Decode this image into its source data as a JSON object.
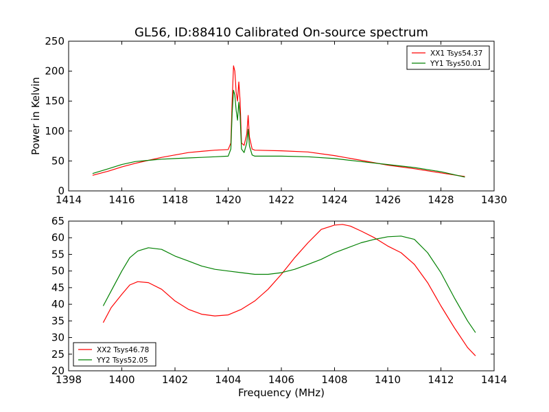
{
  "figure": {
    "title": "GL56, ID:88410 Calibrated On-source spectrum"
  },
  "chart_data": [
    {
      "type": "line",
      "ylabel": "Power in Kelvin",
      "xlabel": "",
      "xlim": [
        1414,
        1430
      ],
      "ylim": [
        0,
        250
      ],
      "xticks": [
        1414,
        1416,
        1418,
        1420,
        1422,
        1424,
        1426,
        1428,
        1430
      ],
      "yticks": [
        0,
        50,
        100,
        150,
        200,
        250
      ],
      "legend": "top-right",
      "grid": false,
      "series": [
        {
          "name": "XX1 Tsys54.37",
          "color": "#ff0000",
          "x": [
            1414.9,
            1415.5,
            1416,
            1416.5,
            1417,
            1417.5,
            1418,
            1418.5,
            1419,
            1419.5,
            1420,
            1420.1,
            1420.15,
            1420.2,
            1420.25,
            1420.3,
            1420.35,
            1420.4,
            1420.45,
            1420.5,
            1420.6,
            1420.7,
            1420.75,
            1420.8,
            1420.9,
            1421,
            1422,
            1423,
            1424,
            1425,
            1426,
            1427,
            1428,
            1428.9
          ],
          "y": [
            26,
            33,
            40,
            46,
            51,
            56,
            60,
            64,
            66,
            68,
            69,
            80,
            150,
            209,
            200,
            165,
            150,
            182,
            150,
            80,
            76,
            95,
            126,
            90,
            70,
            68,
            67,
            65,
            59,
            51,
            43,
            37,
            30,
            24
          ]
        },
        {
          "name": "YY1 Tsys50.01",
          "color": "#008000",
          "x": [
            1414.9,
            1415.5,
            1416,
            1416.5,
            1417,
            1417.5,
            1418,
            1418.5,
            1419,
            1419.5,
            1420,
            1420.1,
            1420.15,
            1420.2,
            1420.25,
            1420.3,
            1420.35,
            1420.4,
            1420.45,
            1420.5,
            1420.6,
            1420.7,
            1420.75,
            1420.8,
            1420.9,
            1421,
            1422,
            1423,
            1424,
            1425,
            1426,
            1427,
            1428,
            1428.9
          ],
          "y": [
            29,
            37,
            44,
            49,
            51,
            53,
            54,
            55,
            56,
            57,
            58,
            70,
            130,
            168,
            160,
            135,
            118,
            148,
            125,
            70,
            64,
            80,
            103,
            75,
            60,
            58,
            58,
            57,
            54,
            49,
            44,
            39,
            32,
            23
          ]
        }
      ]
    },
    {
      "type": "line",
      "ylabel": "",
      "xlabel": "Frequency (MHz)",
      "xlim": [
        1398,
        1414
      ],
      "ylim": [
        20,
        65
      ],
      "xticks": [
        1398,
        1400,
        1402,
        1404,
        1406,
        1408,
        1410,
        1412,
        1414
      ],
      "yticks": [
        20,
        25,
        30,
        35,
        40,
        45,
        50,
        55,
        60,
        65
      ],
      "legend": "bottom-left",
      "grid": false,
      "series": [
        {
          "name": "XX2 Tsys46.78",
          "color": "#ff0000",
          "x": [
            1399.3,
            1399.6,
            1400,
            1400.3,
            1400.6,
            1401,
            1401.5,
            1402,
            1402.5,
            1403,
            1403.5,
            1404,
            1404.5,
            1405,
            1405.5,
            1406,
            1406.5,
            1407,
            1407.5,
            1408,
            1408.3,
            1408.6,
            1409,
            1409.5,
            1410,
            1410.5,
            1411,
            1411.5,
            1412,
            1412.5,
            1413,
            1413.3
          ],
          "y": [
            34.5,
            39,
            43,
            45.8,
            46.8,
            46.5,
            44.5,
            41,
            38.5,
            37,
            36.5,
            36.8,
            38.5,
            41,
            44.5,
            49,
            54,
            58.5,
            62.5,
            63.8,
            64,
            63.5,
            62,
            60,
            57.5,
            55.5,
            52,
            46.5,
            39.5,
            33,
            27,
            24.5
          ]
        },
        {
          "name": "YY2 Tsys52.05",
          "color": "#008000",
          "x": [
            1399.3,
            1399.6,
            1400,
            1400.3,
            1400.6,
            1401,
            1401.5,
            1402,
            1402.5,
            1403,
            1403.5,
            1404,
            1404.5,
            1405,
            1405.5,
            1406,
            1406.5,
            1407,
            1407.5,
            1408,
            1408.5,
            1409,
            1409.5,
            1410,
            1410.5,
            1411,
            1411.5,
            1412,
            1412.5,
            1413,
            1413.3
          ],
          "y": [
            39.5,
            44,
            50,
            54,
            56,
            57,
            56.5,
            54.5,
            53,
            51.5,
            50.5,
            50,
            49.5,
            49,
            49,
            49.5,
            50.5,
            52,
            53.5,
            55.5,
            57,
            58.5,
            59.5,
            60.3,
            60.5,
            59.5,
            55.5,
            49.5,
            42,
            35,
            31.5
          ]
        }
      ]
    }
  ]
}
